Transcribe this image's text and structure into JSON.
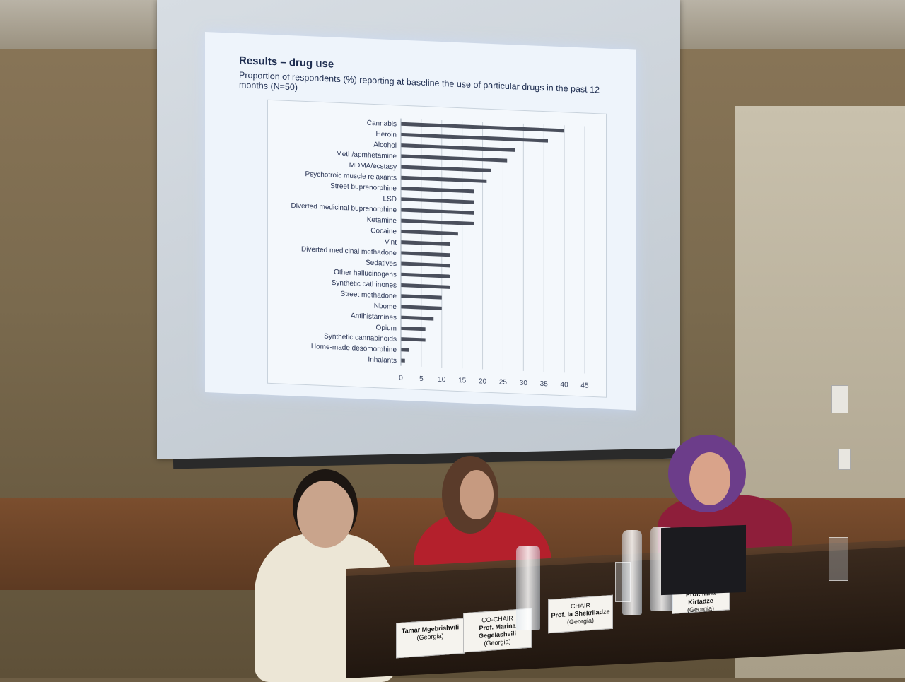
{
  "slide": {
    "title": "Results – drug use",
    "subtitle": "Proportion of respondents (%) reporting at baseline the use of particular drugs in the past 12 months (N=50)"
  },
  "chart_data": {
    "type": "bar",
    "orientation": "horizontal",
    "title": "",
    "xlabel": "",
    "ylabel": "",
    "xlim": [
      0,
      45
    ],
    "xticks": [
      0,
      5,
      10,
      15,
      20,
      25,
      30,
      35,
      40,
      45
    ],
    "grid": true,
    "categories": [
      "Cannabis",
      "Heroin",
      "Alcohol",
      "Meth/apmhetamine",
      "MDMA/ecstasy",
      "Psychotroic muscle relaxants",
      "Street buprenorphine",
      "LSD",
      "Diverted medicinal buprenorphine",
      "Ketamine",
      "Cocaine",
      "Vint",
      "Diverted medicinal methadone",
      "Sedatives",
      "Other hallucinogens",
      "Synthetic cathinones",
      "Street methadone",
      "Nbome",
      "Antihistamines",
      "Opium",
      "Synthetic cannabinoids",
      "Home-made desomorphine",
      "Inhalants"
    ],
    "values": [
      40,
      36,
      28,
      26,
      22,
      21,
      18,
      18,
      18,
      18,
      14,
      12,
      12,
      12,
      12,
      12,
      10,
      10,
      8,
      6,
      6,
      2,
      1
    ],
    "bar_color": "#4a4f5c"
  },
  "nameplates": [
    {
      "role": "",
      "name": "Tamar Mgebrishvili",
      "country": "(Georgia)"
    },
    {
      "role": "CO-CHAIR",
      "name": "Prof. Marina Gegelashvili",
      "country": "(Georgia)"
    },
    {
      "role": "CHAIR",
      "name": "Prof. Ia Shekriladze",
      "country": "(Georgia)"
    },
    {
      "role": "",
      "name": "Prof. Irma Kirtadze",
      "country": "(Georgia)"
    }
  ]
}
